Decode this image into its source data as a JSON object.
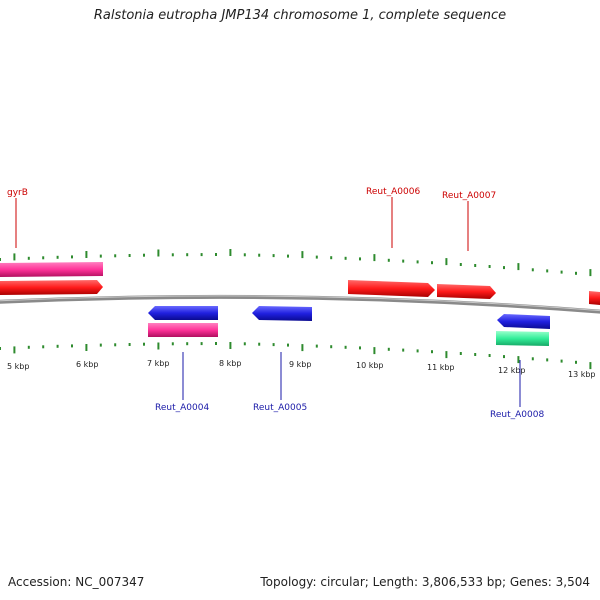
{
  "title": "Ralstonia eutropha JMP134 chromosome 1, complete sequence",
  "footer": {
    "accession": "Accession: NC_007347",
    "topology": "Topology: circular; Length: 3,806,533 bp; Genes: 3,504"
  },
  "colors": {
    "backbone": "#8a8a8a",
    "tick": "#2e8b2e",
    "forward_label": "#cc0000",
    "reverse_label": "#1a1aa8",
    "gene_red": "#ff1a1a",
    "gene_pink": "#ff3399",
    "gene_blue": "#2020e0",
    "gene_green": "#33ee99"
  },
  "scale_labels": [
    "5 kbp",
    "6 kbp",
    "7 kbp",
    "8 kbp",
    "9 kbp",
    "10 kbp",
    "11 kbp",
    "12 kbp",
    "13 kbp"
  ],
  "gene_labels": [
    {
      "name": "gyrB",
      "strand": "forward"
    },
    {
      "name": "Reut_A0006",
      "strand": "forward"
    },
    {
      "name": "Reut_A0007",
      "strand": "forward"
    },
    {
      "name": "Reut_A0004",
      "strand": "reverse"
    },
    {
      "name": "Reut_A0005",
      "strand": "reverse"
    },
    {
      "name": "Reut_A0008",
      "strand": "reverse"
    }
  ]
}
